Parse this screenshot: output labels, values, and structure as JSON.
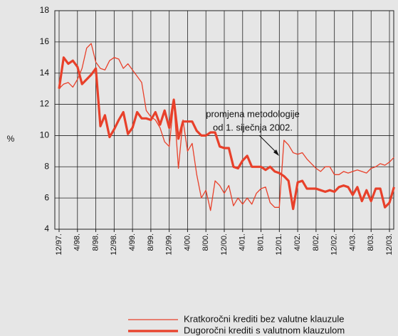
{
  "chart_data": {
    "type": "line",
    "ylabel": "%",
    "annotation": [
      "promjena metodologije",
      "od 1. siječnja 2002."
    ],
    "categories": [
      "12/97.",
      null,
      null,
      null,
      "4/98.",
      null,
      null,
      null,
      "8/98.",
      null,
      null,
      null,
      "12/98.",
      null,
      null,
      null,
      "4/99.",
      null,
      null,
      null,
      "8/99.",
      null,
      null,
      null,
      "12/99.",
      null,
      null,
      null,
      "4/00.",
      null,
      null,
      null,
      "8/00.",
      null,
      null,
      null,
      "12/00.",
      null,
      null,
      null,
      "4/01.",
      null,
      null,
      null,
      "8/01.",
      null,
      null,
      null,
      "12/01.",
      null,
      null,
      null,
      "4/02.",
      null,
      null,
      null,
      "8/02.",
      null,
      null,
      null,
      "12/02.",
      null,
      null,
      null,
      "4/03.",
      null,
      null,
      null,
      "8/03.",
      null,
      null,
      null,
      "12/03.",
      null
    ],
    "series": [
      {
        "name": "Kratkoročni krediti bez valutne klauzule",
        "color": "#e8402a",
        "width": 1.3,
        "values": [
          13.0,
          13.3,
          13.4,
          13.1,
          13.6,
          14.3,
          15.6,
          15.9,
          14.7,
          14.3,
          14.2,
          14.8,
          15.0,
          14.9,
          14.3,
          14.6,
          14.2,
          13.8,
          13.4,
          11.6,
          11.2,
          11.0,
          10.5,
          9.6,
          9.3,
          12.2,
          7.9,
          11.0,
          9.0,
          9.5,
          7.5,
          6.0,
          6.5,
          5.2,
          7.1,
          6.8,
          6.3,
          6.8,
          5.5,
          6.0,
          5.6,
          6.0,
          5.6,
          6.3,
          6.6,
          6.7,
          5.7,
          5.4,
          5.4,
          9.7,
          9.4,
          8.9,
          8.8,
          8.9,
          8.5,
          8.2,
          7.9,
          7.7,
          8.0,
          8.0,
          7.5,
          7.5,
          7.7,
          7.6,
          7.7,
          7.8,
          7.7,
          7.6,
          7.9,
          8.0,
          8.2,
          8.1,
          8.3,
          8.6
        ]
      },
      {
        "name": "Dugoročni krediti s valutnom klauzulom",
        "color": "#e8402a",
        "width": 3.2,
        "values": [
          13.0,
          15.0,
          14.6,
          14.8,
          14.4,
          13.3,
          13.6,
          13.9,
          14.3,
          10.6,
          11.3,
          9.9,
          10.4,
          11.0,
          11.5,
          10.1,
          10.5,
          11.5,
          11.1,
          11.1,
          11.0,
          11.5,
          10.7,
          11.6,
          10.5,
          12.3,
          9.8,
          10.9,
          10.9,
          10.9,
          10.3,
          10.0,
          10.0,
          10.2,
          10.2,
          9.3,
          9.2,
          9.2,
          8.0,
          7.9,
          8.4,
          8.7,
          8.0,
          8.0,
          8.0,
          7.8,
          8.0,
          7.7,
          7.6,
          7.4,
          7.1,
          5.3,
          7.0,
          7.1,
          6.6,
          6.6,
          6.6,
          6.5,
          6.4,
          6.5,
          6.4,
          6.7,
          6.8,
          6.7,
          6.2,
          6.7,
          5.8,
          6.5,
          5.8,
          6.6,
          6.6,
          5.4,
          5.7,
          6.7
        ]
      }
    ],
    "ylim": [
      4,
      18
    ],
    "yticks": [
      4,
      6,
      8,
      10,
      12,
      14,
      16,
      18
    ],
    "grid": true
  }
}
